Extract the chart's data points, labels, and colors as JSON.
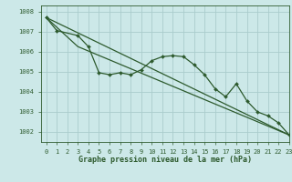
{
  "background_color": "#cce8e8",
  "grid_color": "#aacccc",
  "line_color": "#2d5a2d",
  "title": "Graphe pression niveau de la mer (hPa)",
  "xlim": [
    -0.5,
    23
  ],
  "ylim": [
    1001.5,
    1008.3
  ],
  "yticks": [
    1002,
    1003,
    1004,
    1005,
    1006,
    1007,
    1008
  ],
  "xticks": [
    0,
    1,
    2,
    3,
    4,
    5,
    6,
    7,
    8,
    9,
    10,
    11,
    12,
    13,
    14,
    15,
    16,
    17,
    18,
    19,
    20,
    21,
    22,
    23
  ],
  "series1_x": [
    0,
    1,
    3,
    4,
    5,
    6,
    7,
    8,
    9,
    10,
    11,
    12,
    13,
    14,
    15,
    16,
    17,
    18,
    19,
    20,
    21,
    22,
    23
  ],
  "series1_y": [
    1007.7,
    1007.05,
    1006.8,
    1006.25,
    1004.95,
    1004.85,
    1004.95,
    1004.85,
    1005.1,
    1005.55,
    1005.75,
    1005.8,
    1005.75,
    1005.35,
    1004.85,
    1004.15,
    1003.75,
    1004.4,
    1003.55,
    1003.0,
    1002.8,
    1002.45,
    1001.85
  ],
  "series2_x": [
    0,
    3,
    23
  ],
  "series2_y": [
    1007.7,
    1006.25,
    1001.85
  ],
  "series3_x": [
    0,
    23
  ],
  "series3_y": [
    1007.7,
    1001.85
  ],
  "ylabel_fontsize": 5.0,
  "xlabel_fontsize": 5.0,
  "title_fontsize": 6.0,
  "marker_size": 2.0,
  "line_width": 0.9
}
